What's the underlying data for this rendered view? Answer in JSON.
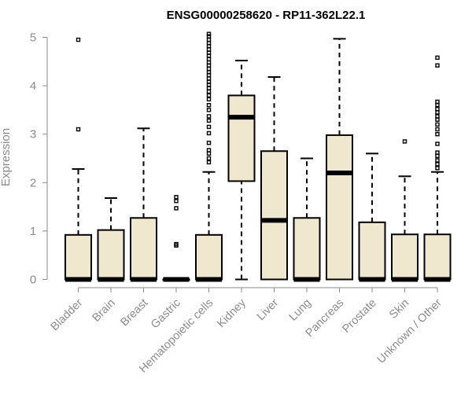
{
  "chart_data": {
    "type": "boxplot",
    "title": "ENSG00000258620 - RP11-362L22.1",
    "ylabel": "Expression",
    "xlabel": "",
    "ylim": [
      0,
      5
    ],
    "yticks": [
      0,
      1,
      2,
      3,
      4,
      5
    ],
    "grid": false,
    "colors": {
      "box_fill": "#efe8cf",
      "axis": "#8a8a8a"
    },
    "categories": [
      "Bladder",
      "Brain",
      "Breast",
      "Gastric",
      "Hematopoietic cells",
      "Kidney",
      "Liver",
      "Lung",
      "Pancreas",
      "Prostate",
      "Skin",
      "Unknown / Other"
    ],
    "boxes": [
      {
        "category": "Bladder",
        "whisker_low": 0,
        "q1": 0,
        "median": 0,
        "q3": 0.92,
        "whisker_high": 2.28,
        "outliers": [
          3.1,
          4.95
        ]
      },
      {
        "category": "Brain",
        "whisker_low": 0,
        "q1": 0,
        "median": 0,
        "q3": 1.02,
        "whisker_high": 1.68,
        "outliers": []
      },
      {
        "category": "Breast",
        "whisker_low": 0,
        "q1": 0,
        "median": 0,
        "q3": 1.27,
        "whisker_high": 3.12,
        "outliers": []
      },
      {
        "category": "Gastric",
        "whisker_low": 0,
        "q1": 0,
        "median": 0,
        "q3": 0,
        "whisker_high": 0,
        "outliers": [
          0.7,
          0.73,
          1.47,
          1.62,
          1.7
        ]
      },
      {
        "category": "Hematopoietic cells",
        "whisker_low": 0,
        "q1": 0,
        "median": 0,
        "q3": 0.92,
        "whisker_high": 2.22,
        "outliers": [
          2.42,
          2.5,
          2.6,
          2.67,
          2.82,
          3.02,
          3.15,
          3.28,
          3.37,
          3.5,
          3.6,
          3.72,
          3.8,
          3.88,
          3.95,
          4.02,
          4.08,
          4.15,
          4.22,
          4.28,
          4.35,
          4.42,
          4.48,
          4.55,
          4.62,
          4.68,
          4.75,
          4.82,
          4.88,
          4.95,
          5.02,
          5.07
        ]
      },
      {
        "category": "Kidney",
        "whisker_low": 0,
        "q1": 2.03,
        "median": 3.35,
        "q3": 3.8,
        "whisker_high": 4.52,
        "outliers": []
      },
      {
        "category": "Liver",
        "whisker_low": 0,
        "q1": 0,
        "median": 1.22,
        "q3": 2.65,
        "whisker_high": 4.18,
        "outliers": []
      },
      {
        "category": "Lung",
        "whisker_low": 0,
        "q1": 0,
        "median": 0,
        "q3": 1.27,
        "whisker_high": 2.5,
        "outliers": []
      },
      {
        "category": "Pancreas",
        "whisker_low": 0,
        "q1": 0,
        "median": 2.2,
        "q3": 2.98,
        "whisker_high": 4.97,
        "outliers": []
      },
      {
        "category": "Prostate",
        "whisker_low": 0,
        "q1": 0,
        "median": 0,
        "q3": 1.18,
        "whisker_high": 2.6,
        "outliers": []
      },
      {
        "category": "Skin",
        "whisker_low": 0,
        "q1": 0,
        "median": 0,
        "q3": 0.93,
        "whisker_high": 2.13,
        "outliers": [
          2.85
        ]
      },
      {
        "category": "Unknown / Other",
        "whisker_low": 0,
        "q1": 0,
        "median": 0,
        "q3": 0.93,
        "whisker_high": 2.22,
        "outliers": [
          2.3,
          2.38,
          2.46,
          2.55,
          2.62,
          2.8,
          3.0,
          3.1,
          3.2,
          3.3,
          3.37,
          3.45,
          3.52,
          3.6,
          3.67,
          4.42,
          4.58
        ]
      }
    ]
  }
}
